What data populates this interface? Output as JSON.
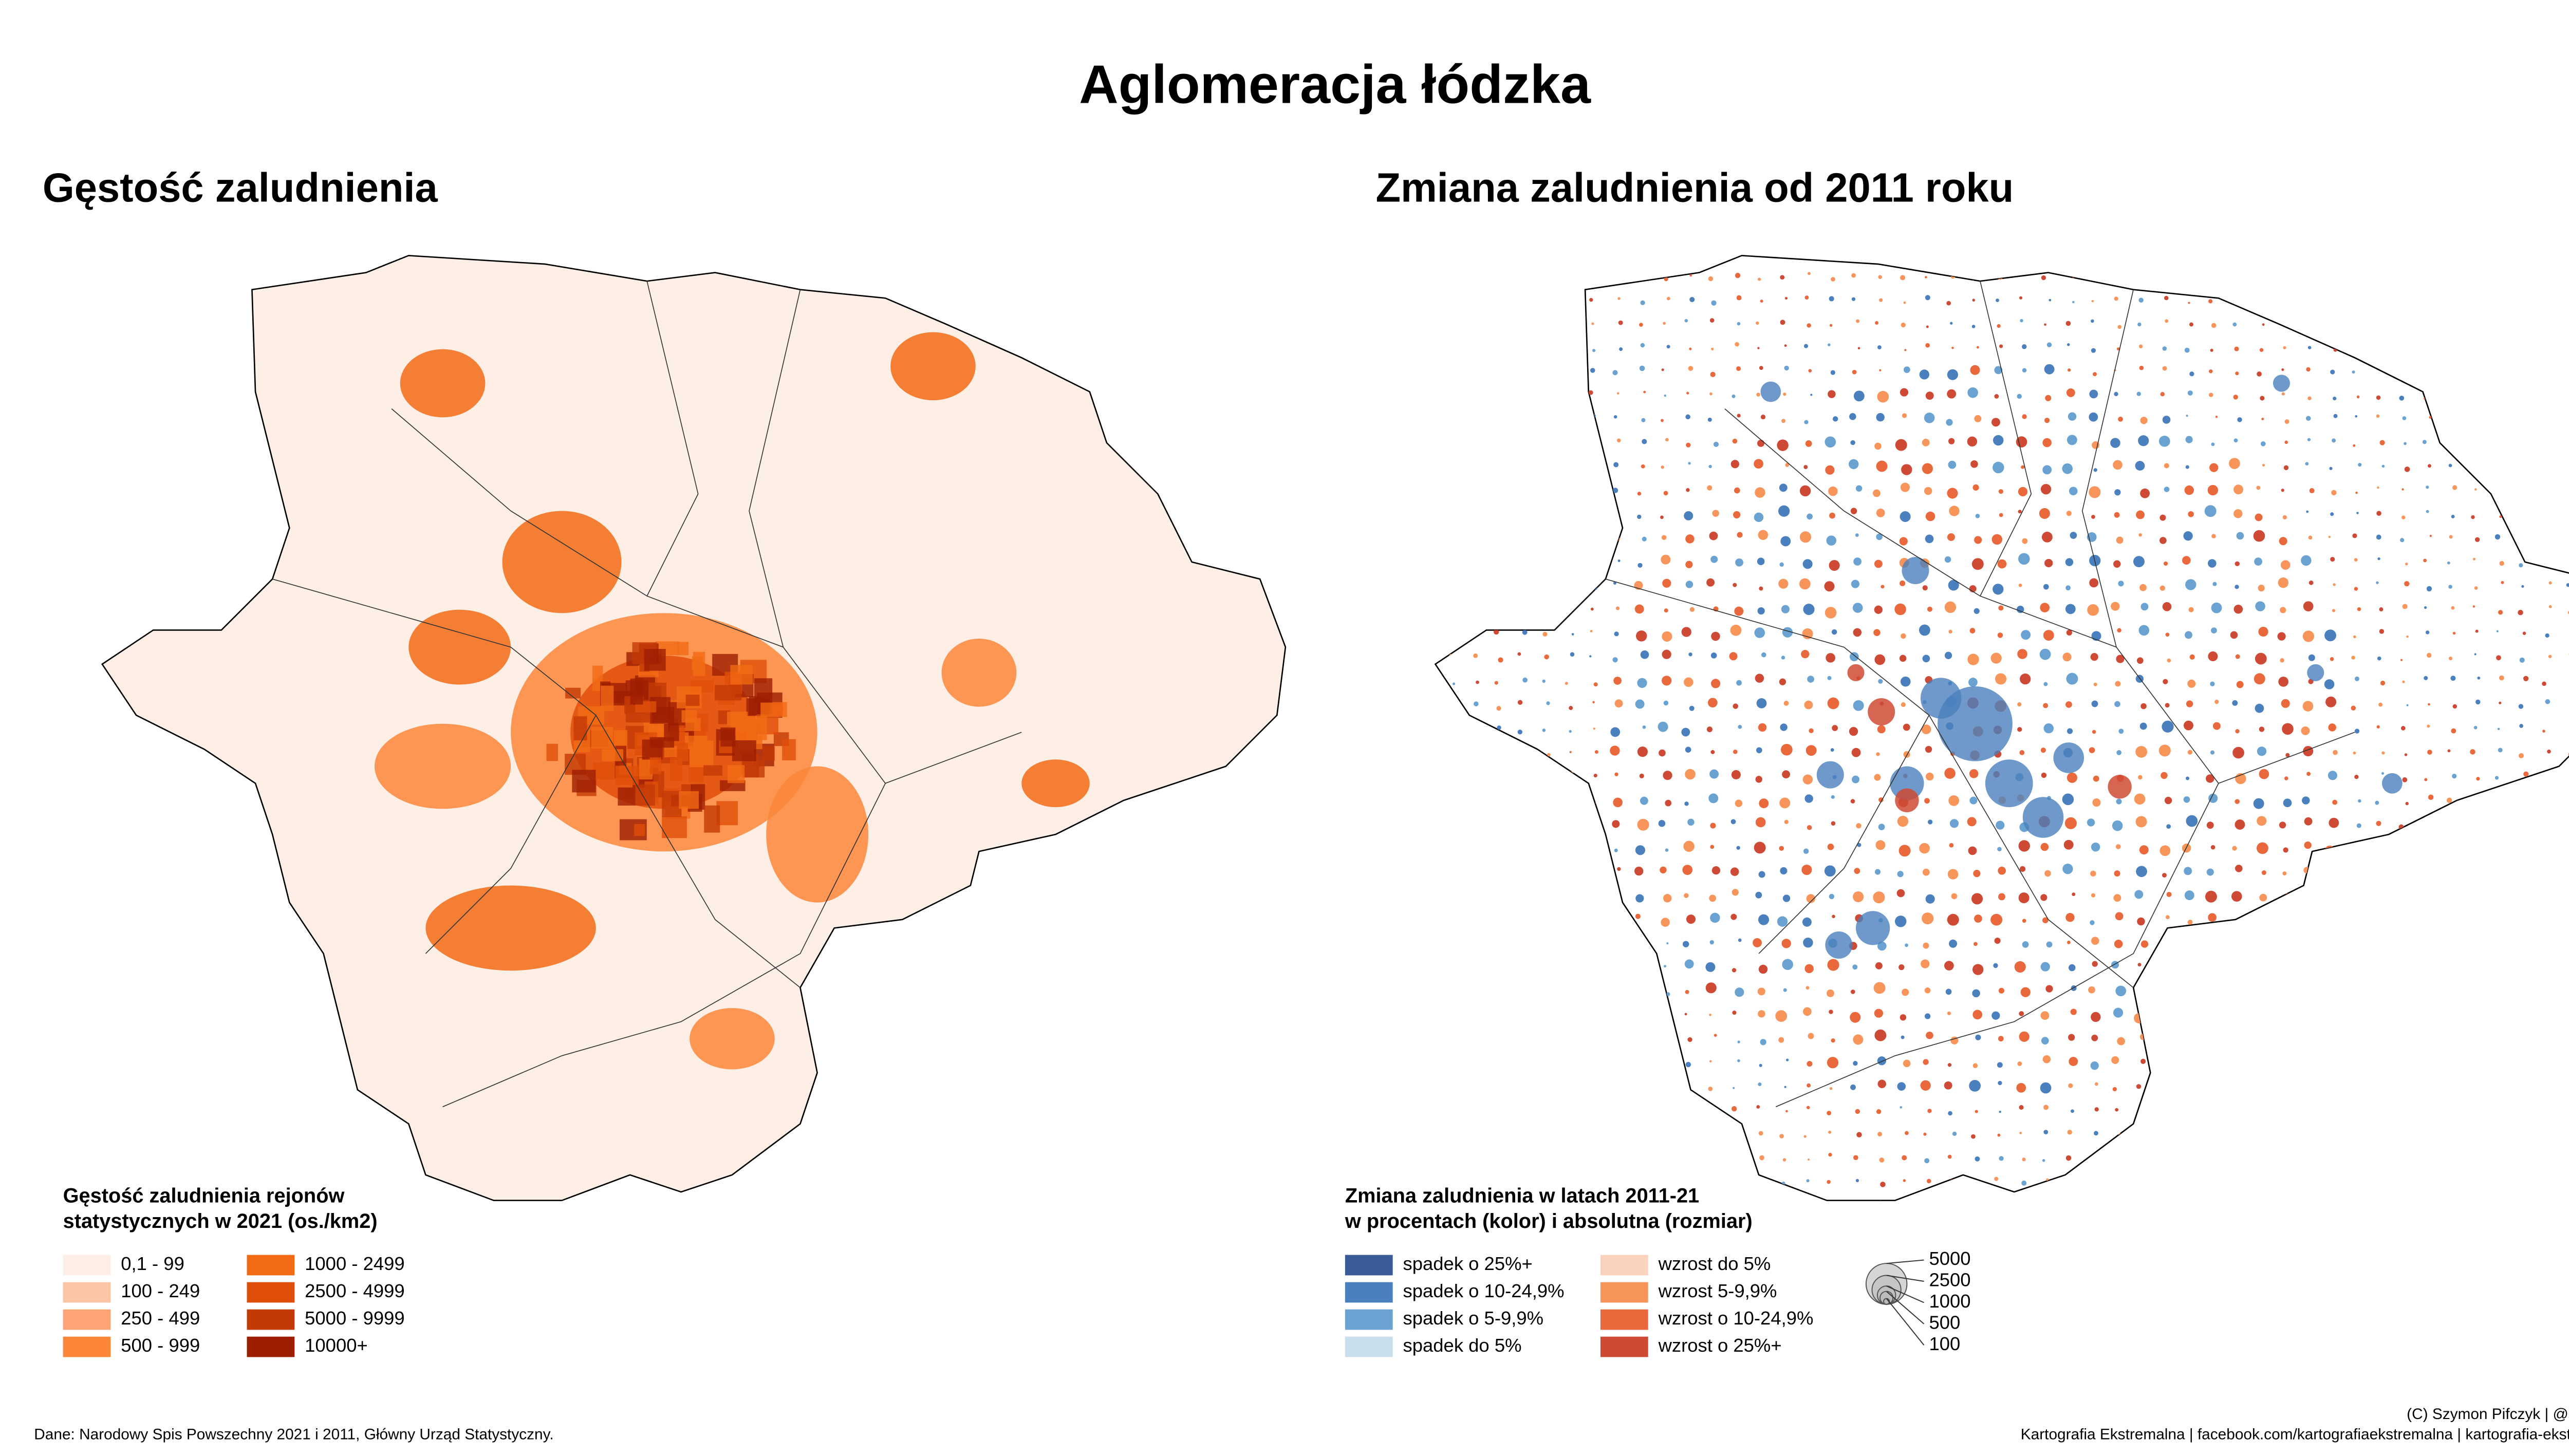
{
  "title": "Aglomeracja łódzka",
  "maps": [
    {
      "title": "Gęstość zaludnienia",
      "legend": {
        "title_lines": [
          "Gęstość zaludnienia rejonów",
          "statystycznych w 2021 (os./km2)"
        ],
        "items": [
          {
            "label": "0,1 - 99",
            "color": "#fdeee6"
          },
          {
            "label": "100 - 249",
            "color": "#fcc5a5"
          },
          {
            "label": "250 - 499",
            "color": "#fca475"
          },
          {
            "label": "500 - 999",
            "color": "#fb8637"
          },
          {
            "label": "1000 - 2499",
            "color": "#f26a14"
          },
          {
            "label": "2500 - 4999",
            "color": "#e04f0a"
          },
          {
            "label": "5000 - 9999",
            "color": "#c43a06"
          },
          {
            "label": "10000+",
            "color": "#9e1e02"
          }
        ]
      }
    },
    {
      "title": "Zmiana zaludnienia od 2011 roku",
      "legend": {
        "title_lines": [
          "Zmiana zaludnienia w latach 2011-21",
          "w procentach (kolor) i absolutna (rozmiar)"
        ],
        "items": [
          {
            "label": "spadek o 25%+",
            "color": "#3a5a98"
          },
          {
            "label": "spadek o 10-24,9%",
            "color": "#4a80bd"
          },
          {
            "label": "spadek o 5-9,9%",
            "color": "#6aa3d2"
          },
          {
            "label": "spadek do 5%",
            "color": "#c9dfee"
          },
          {
            "label": "wzrost do 5%",
            "color": "#fbd3bd"
          },
          {
            "label": "wzrost 5-9,9%",
            "color": "#f7955a"
          },
          {
            "label": "wzrost o 10-24,9%",
            "color": "#e9693c"
          },
          {
            "label": "wzrost o 25%+",
            "color": "#cf4a34"
          }
        ]
      }
    }
  ],
  "size_legend": {
    "values": [
      5000,
      2500,
      1000,
      500,
      100
    ]
  },
  "source": "Dane: Narodowy Spis Powszechny 2021 i 2011, Główny Urząd Statystyczny.",
  "credits": [
    "(C) Szymon Pifczyk | @sheemawn",
    "Kartografia Ekstremalna | facebook.com/kartografiaekstremalna | kartografia-ekstremalna.pl"
  ]
}
